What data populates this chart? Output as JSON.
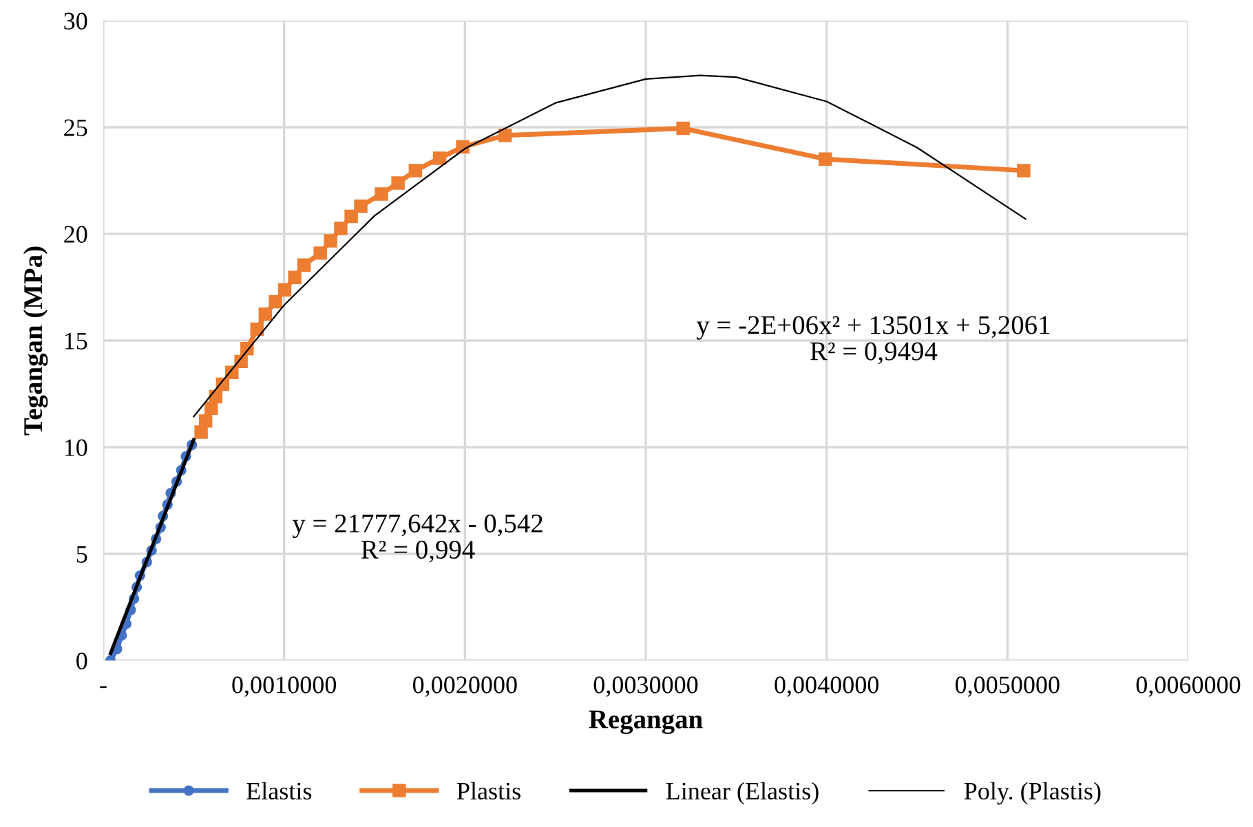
{
  "chart_data": {
    "type": "line",
    "xlabel": "Regangan",
    "ylabel": "Tegangan (MPa)",
    "xlim": [
      0,
      0.006
    ],
    "ylim": [
      0,
      30
    ],
    "xticks": [
      {
        "value": 0,
        "label": "-"
      },
      {
        "value": 0.001,
        "label": "0,0010000"
      },
      {
        "value": 0.002,
        "label": "0,0020000"
      },
      {
        "value": 0.003,
        "label": "0,0030000"
      },
      {
        "value": 0.004,
        "label": "0,0040000"
      },
      {
        "value": 0.005,
        "label": "0,0050000"
      },
      {
        "value": 0.006,
        "label": "0,0060000"
      }
    ],
    "yticks": [
      0,
      5,
      10,
      15,
      20,
      25,
      30
    ],
    "grid": true,
    "legend": "bottom",
    "series": [
      {
        "name": "Elastis",
        "color": "#4472c4",
        "marker": "circle",
        "x": [
          4e-05,
          7.6e-05,
          0.000102,
          0.000127,
          0.000152,
          0.00017,
          0.000185,
          0.000203,
          0.000241,
          0.000267,
          0.000292,
          0.000317,
          0.00033,
          0.000355,
          0.000373,
          0.000406,
          0.000431,
          0.000457,
          0.00049
        ],
        "values": [
          0,
          0.54,
          1.18,
          1.72,
          2.37,
          2.9,
          3.44,
          3.98,
          4.62,
          5.16,
          5.7,
          6.24,
          6.77,
          7.31,
          7.85,
          8.39,
          8.92,
          9.57,
          10.11
        ]
      },
      {
        "name": "Plastis",
        "color": "#ed7d31",
        "marker": "square",
        "x": [
          0.000541,
          0.000566,
          0.000597,
          0.000622,
          0.00066,
          0.000711,
          0.000762,
          0.000795,
          0.00085,
          0.000896,
          0.000952,
          0.001003,
          0.001059,
          0.00111,
          0.0012,
          0.001257,
          0.001313,
          0.001371,
          0.001424,
          0.001538,
          0.00163,
          0.001726,
          0.00186,
          0.001988,
          0.002222,
          0.003206,
          0.003993,
          0.00509
        ],
        "values": [
          10.71,
          11.23,
          11.83,
          12.37,
          12.95,
          13.51,
          14.02,
          14.62,
          15.53,
          16.24,
          16.82,
          17.38,
          17.96,
          18.54,
          19.1,
          19.68,
          20.26,
          20.82,
          21.3,
          21.87,
          22.39,
          22.97,
          23.55,
          24.08,
          24.62,
          24.95,
          23.51,
          22.97
        ]
      },
      {
        "name": "Linear (Elastis)",
        "color": "#000000",
        "marker": "none",
        "x": [
          4e-05,
          0.0005
        ],
        "values": [
          0.33,
          10.35
        ]
      },
      {
        "name": "Poly. (Plastis)",
        "color": "#000000",
        "marker": "none",
        "x": [
          0.0005,
          0.001,
          0.0015,
          0.002,
          0.0025,
          0.003,
          0.0033,
          0.0035,
          0.004,
          0.0045,
          0.0051
        ],
        "values": [
          11.44,
          16.66,
          20.85,
          24.0,
          26.14,
          27.26,
          27.43,
          27.35,
          26.21,
          24.05,
          20.7
        ]
      }
    ],
    "annotations": [
      "y = 21777,642x - 0,542\nR² = 0,994",
      "y = -2E+06x² + 13501x + 5,2061\nR² = 0,9494"
    ]
  }
}
